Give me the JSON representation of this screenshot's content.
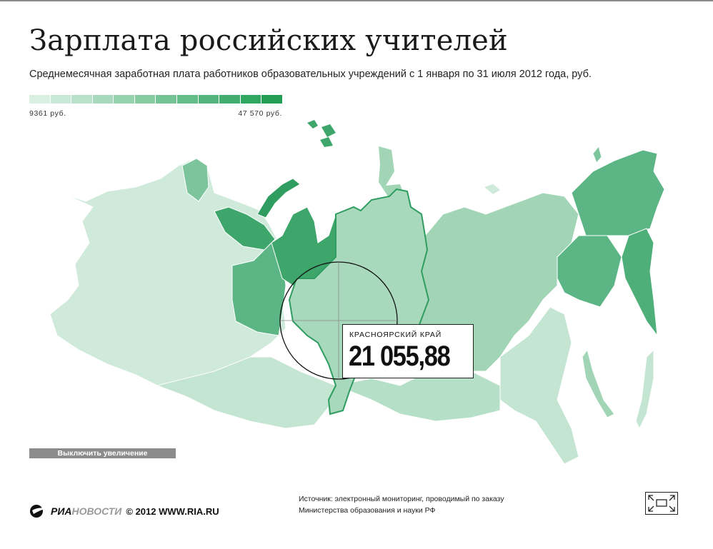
{
  "header": {
    "title": "Зарплата российских учителей",
    "subtitle": "Среднемесячная заработная плата работников образовательных учреждений с 1 января по 31 июля 2012 года, руб."
  },
  "legend": {
    "min_label": "9361 руб.",
    "max_label": "47 570 руб.",
    "min_value": 9361,
    "max_value": 47570,
    "colors": [
      "#d9efe2",
      "#c9e8d5",
      "#b9e1c9",
      "#a8d9bc",
      "#97d2af",
      "#86cba2",
      "#75c395",
      "#64bc88",
      "#53b57b",
      "#42ad6e",
      "#31a661",
      "#229e55"
    ]
  },
  "map": {
    "highlighted_region": "Красноярский край",
    "highlight_color": "#2f9c60",
    "base_color": "#bfe3cd"
  },
  "tooltip": {
    "region": "КРАСНОЯРСКИЙ КРАЙ",
    "value": "21 055,88"
  },
  "controls": {
    "zoom_off_label": "Выключить увеличение",
    "fullscreen_icon": "fullscreen-icon"
  },
  "footer": {
    "logo_part1": "РИА",
    "logo_part2": "НОВОСТИ",
    "copyright": "© 2012 WWW.RIA.RU",
    "source_line1": "Источник: электронный мониторинг, проводимый по заказу",
    "source_line2": "Министерства образования и науки РФ"
  }
}
